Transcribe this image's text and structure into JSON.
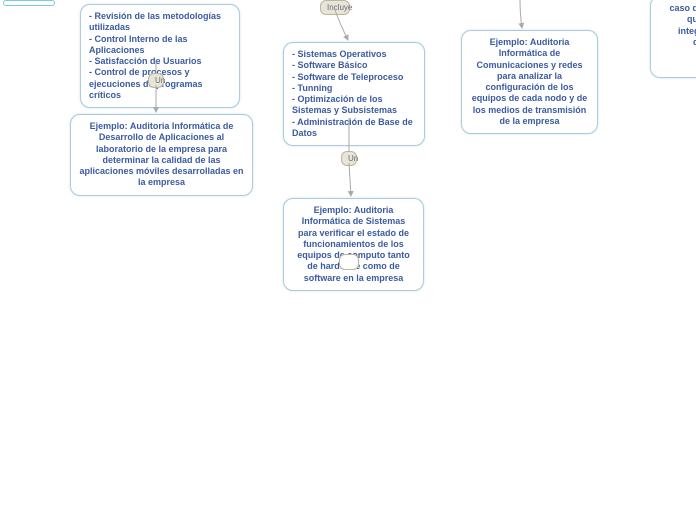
{
  "colors": {
    "node_border": "#aaccdd",
    "node_text": "#3b5ba0",
    "small_box_bg": "#e7e5db",
    "small_box_border": "#bdb49a",
    "small_box_text": "#6b6b6b",
    "arrow": "#a9a9a9",
    "background": "#ffffff",
    "tab_border": "#7fc9e0"
  },
  "labels": {
    "incluye": "Incluye",
    "un1": "Un",
    "un2": "Un"
  },
  "nodes": {
    "top_left": "- Revisión de las metodologías utilizadas\n- Control Interno de las Aplicaciones\n- Satisfacción de Usuarios\n- Control de procesos y ejecuciones de programas críticos",
    "bottom_left": "Ejemplo: Auditoria Informática de Desarrollo de Aplicaciones al laboratorio de la empresa para determinar la calidad de las aplicaciones móviles desarrolladas en la empresa",
    "middle_list": "- Sistemas Operativos\n- Software Básico\n- Software de Teleproceso\n- Tunning\n- Optimización de los Sistemas y Subsistemas\n- Administración de Base de Datos",
    "middle_example": "Ejemplo: Auditoria Informática de Sistemas para verificar el estado de funcionamientos de los equipos de computo tanto de hardware como de software en la empresa",
    "right_example": "Ejemplo: Auditoria Informática de Comunicaciones y redes para analizar la configuración de los equipos de cada nodo y de los medios de transmisión de la empresa",
    "far_right": "caso de u\nque p\nintegrid\nde c\nir\nde"
  }
}
